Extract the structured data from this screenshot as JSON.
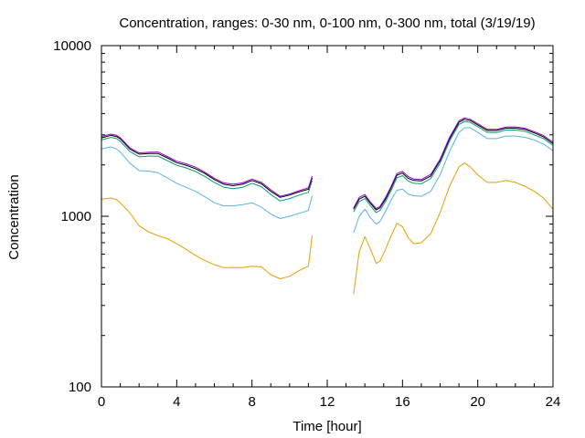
{
  "chart_data": {
    "type": "line",
    "title": "Concentration, ranges: 0-30 nm, 0-100 nm, 0-300 nm, total (3/19/19)",
    "xlabel": "Time [hour]",
    "ylabel": "Concentration",
    "xlim": [
      0,
      24
    ],
    "ylim": [
      100,
      10000
    ],
    "yscale": "log",
    "grid": false,
    "x_ticks": [
      "0",
      "4",
      "8",
      "12",
      "16",
      "20",
      "24"
    ],
    "x_tick_values": [
      0,
      4,
      8,
      12,
      16,
      20,
      24
    ],
    "y_ticks": [
      "100",
      "1000",
      "10000"
    ],
    "y_tick_values": [
      100,
      1000,
      10000
    ],
    "series": [
      {
        "color": "#e69f00",
        "segments": [
          {
            "x": [
              0,
              0.5,
              0.8,
              1,
              1.5,
              2,
              2.5,
              3,
              3.5,
              4,
              4.5,
              5,
              5.5,
              6,
              6.5,
              7,
              7.5,
              8,
              8.5,
              9,
              9.5,
              10,
              10.5,
              11,
              11.2
            ],
            "y": [
              1260,
              1280,
              1250,
              1200,
              1050,
              880,
              810,
              770,
              740,
              690,
              640,
              590,
              550,
              520,
              500,
              500,
              500,
              510,
              505,
              455,
              430,
              445,
              480,
              510,
              770
            ]
          },
          {
            "x": [
              13.4,
              13.7,
              14,
              14.3,
              14.6,
              14.8,
              15.1,
              15.4,
              15.7,
              16,
              16.3,
              16.6,
              17,
              17.5,
              18,
              18.5,
              19,
              19.3,
              19.6,
              20,
              20.5,
              21,
              21.5,
              22,
              22.5,
              23,
              23.5,
              24
            ],
            "y": [
              350,
              620,
              760,
              640,
              530,
              545,
              640,
              770,
              910,
              870,
              750,
              690,
              700,
              790,
              1050,
              1500,
              1950,
              2050,
              1950,
              1750,
              1580,
              1580,
              1620,
              1580,
              1500,
              1400,
              1280,
              1100
            ]
          }
        ]
      },
      {
        "color": "#56b4e9",
        "segments": [
          {
            "x": [
              0,
              0.5,
              0.8,
              1,
              1.5,
              2,
              2.5,
              3,
              3.5,
              4,
              4.5,
              5,
              5.5,
              6,
              6.5,
              7,
              7.5,
              8,
              8.5,
              9,
              9.5,
              10,
              10.5,
              11,
              11.2
            ],
            "y": [
              2480,
              2550,
              2480,
              2380,
              2050,
              1850,
              1840,
              1800,
              1680,
              1560,
              1480,
              1400,
              1300,
              1200,
              1150,
              1150,
              1170,
              1200,
              1130,
              1030,
              970,
              1000,
              1040,
              1080,
              1320
            ]
          },
          {
            "x": [
              13.4,
              13.7,
              14,
              14.3,
              14.6,
              14.8,
              15.1,
              15.4,
              15.7,
              16,
              16.3,
              16.6,
              17,
              17.5,
              18,
              18.5,
              19,
              19.3,
              19.6,
              20,
              20.5,
              21,
              21.5,
              22,
              22.5,
              23,
              23.5,
              24
            ],
            "y": [
              800,
              1000,
              1100,
              980,
              900,
              930,
              1070,
              1250,
              1420,
              1440,
              1350,
              1320,
              1310,
              1400,
              1750,
              2400,
              3100,
              3300,
              3300,
              3100,
              2850,
              2850,
              2950,
              2950,
              2900,
              2800,
              2650,
              2420
            ]
          }
        ]
      },
      {
        "color": "#009e73",
        "segments": [
          {
            "x": [
              0,
              0.5,
              0.8,
              1,
              1.5,
              2,
              2.5,
              3,
              3.5,
              4,
              4.5,
              5,
              5.5,
              6,
              6.5,
              7,
              7.5,
              8,
              8.5,
              9,
              9.5,
              10,
              10.5,
              11,
              11.2
            ],
            "y": [
              2800,
              2900,
              2850,
              2750,
              2400,
              2230,
              2250,
              2250,
              2120,
              1990,
              1920,
              1830,
              1710,
              1580,
              1480,
              1450,
              1480,
              1560,
              1490,
              1340,
              1230,
              1270,
              1330,
              1380,
              1620
            ]
          },
          {
            "x": [
              13.4,
              13.7,
              14,
              14.3,
              14.6,
              14.8,
              15.1,
              15.4,
              15.7,
              16,
              16.3,
              16.6,
              17,
              17.5,
              18,
              18.5,
              19,
              19.3,
              19.6,
              20,
              20.5,
              21,
              21.5,
              22,
              22.5,
              23,
              23.5,
              24
            ],
            "y": [
              1060,
              1220,
              1270,
              1150,
              1050,
              1080,
              1220,
              1420,
              1680,
              1730,
              1610,
              1560,
              1550,
              1660,
              2050,
              2750,
              3450,
              3600,
              3550,
              3350,
              3100,
              3100,
              3200,
              3200,
              3150,
              3000,
              2850,
              2600
            ]
          }
        ]
      },
      {
        "color": "#000000",
        "segments": [
          {
            "x": [
              0,
              0.5,
              0.8,
              1,
              1.5,
              2,
              2.5,
              3,
              3.5,
              4,
              4.5,
              5,
              5.5,
              6,
              6.5,
              7,
              7.5,
              8,
              8.5,
              9,
              9.5,
              10,
              10.5,
              11,
              11.2
            ],
            "y": [
              2880,
              2980,
              2930,
              2840,
              2480,
              2310,
              2330,
              2330,
              2200,
              2060,
              1990,
              1900,
              1780,
              1640,
              1540,
              1510,
              1540,
              1620,
              1550,
              1400,
              1290,
              1330,
              1390,
              1440,
              1680
            ]
          },
          {
            "x": [
              13.4,
              13.7,
              14,
              14.3,
              14.6,
              14.8,
              15.1,
              15.4,
              15.7,
              16,
              16.3,
              16.6,
              17,
              17.5,
              18,
              18.5,
              19,
              19.3,
              19.6,
              20,
              20.5,
              21,
              21.5,
              22,
              22.5,
              23,
              23.5,
              24
            ],
            "y": [
              1100,
              1260,
              1310,
              1190,
              1090,
              1120,
              1260,
              1470,
              1740,
              1790,
              1670,
              1620,
              1610,
              1720,
              2120,
              2840,
              3550,
              3700,
              3640,
              3430,
              3180,
              3180,
              3280,
              3280,
              3230,
              3080,
              2920,
              2660
            ]
          }
        ]
      },
      {
        "color": "#9400d3",
        "segments": [
          {
            "x": [
              0,
              0.5,
              0.8,
              1,
              1.5,
              2,
              2.5,
              3,
              3.5,
              4,
              4.5,
              5,
              5.5,
              6,
              6.5,
              7,
              7.5,
              8,
              8.5,
              9,
              9.5,
              10,
              10.5,
              11,
              11.2
            ],
            "y": [
              2930,
              3030,
              2980,
              2890,
              2520,
              2350,
              2370,
              2380,
              2240,
              2100,
              2030,
              1940,
              1810,
              1670,
              1570,
              1540,
              1570,
              1650,
              1580,
              1430,
              1310,
              1350,
              1410,
              1470,
              1720
            ]
          },
          {
            "x": [
              13.4,
              13.7,
              14,
              14.3,
              14.6,
              14.8,
              15.1,
              15.4,
              15.7,
              16,
              16.3,
              16.6,
              17,
              17.5,
              18,
              18.5,
              19,
              19.3,
              19.6,
              20,
              20.5,
              21,
              21.5,
              22,
              22.5,
              23,
              23.5,
              24
            ],
            "y": [
              1120,
              1290,
              1340,
              1210,
              1110,
              1140,
              1290,
              1500,
              1780,
              1830,
              1710,
              1650,
              1640,
              1760,
              2160,
              2900,
              3620,
              3770,
              3700,
              3490,
              3230,
              3230,
              3330,
              3340,
              3280,
              3130,
              2970,
              2710
            ]
          }
        ]
      }
    ]
  }
}
